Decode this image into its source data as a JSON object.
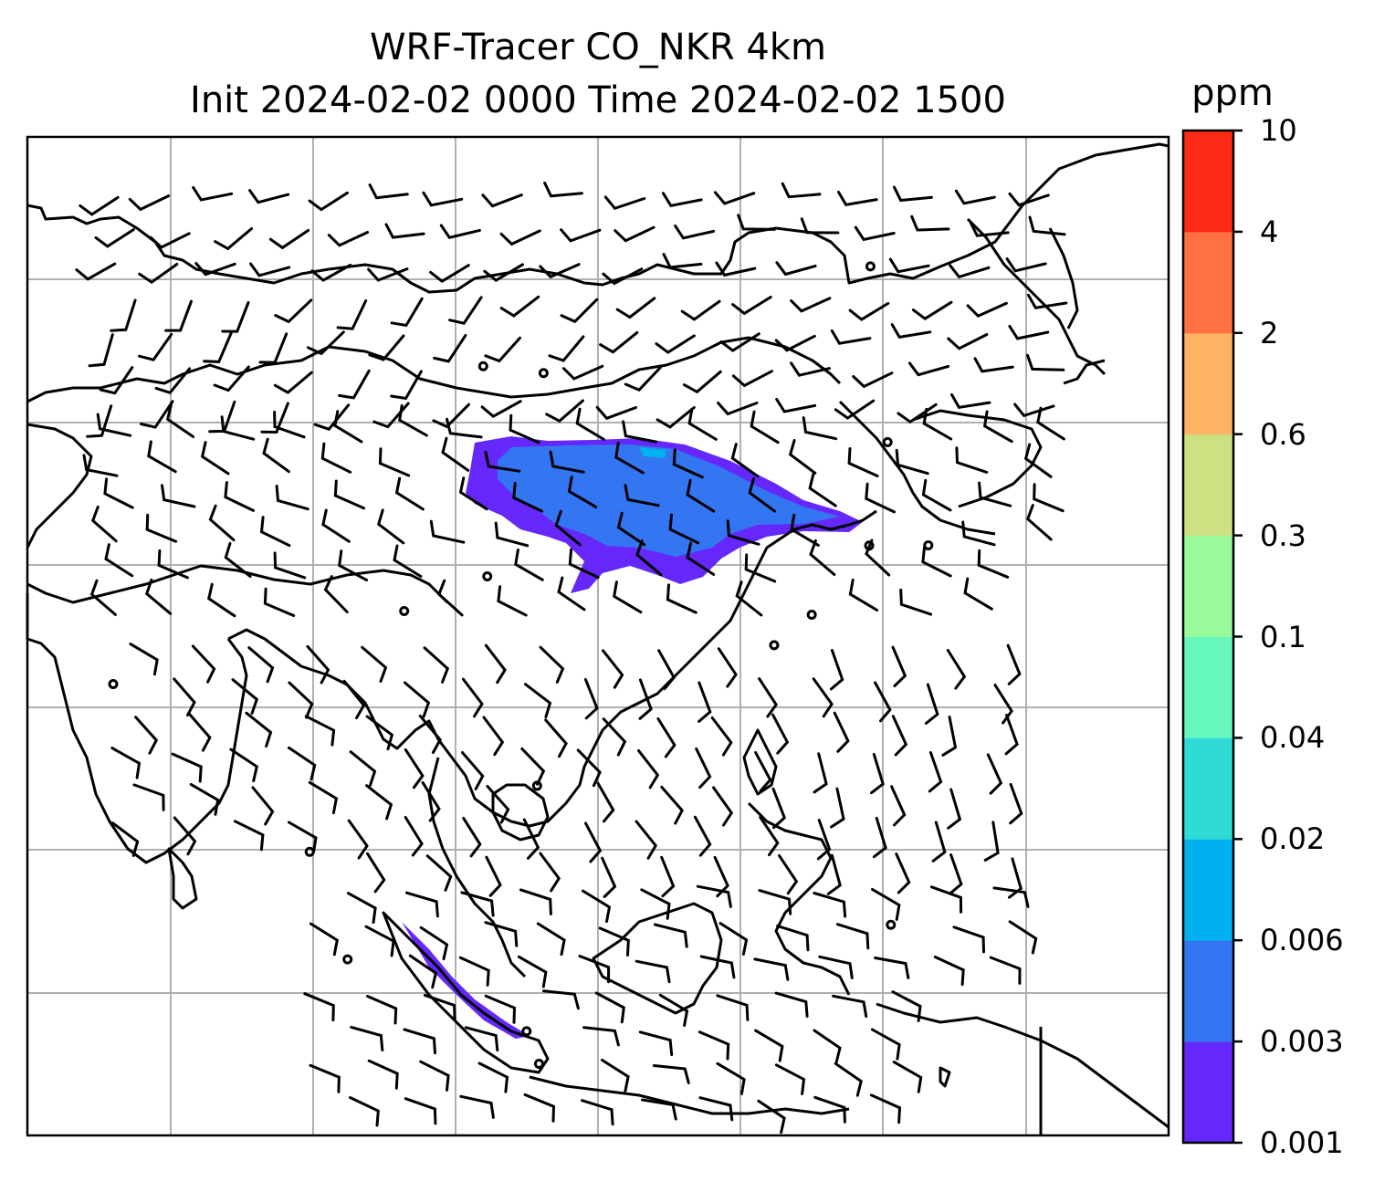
{
  "title": {
    "line1": "WRF-Tracer CO_NKR 4km",
    "line2": "Init 2024-02-02 0000 Time 2024-02-02 1500"
  },
  "colorbar": {
    "unit": "ppm",
    "levels": [
      "0.001",
      "0.003",
      "0.006",
      "0.02",
      "0.04",
      "0.1",
      "0.3",
      "0.6",
      "2",
      "4",
      "10"
    ],
    "colors": [
      "#6627fb",
      "#3475f2",
      "#00b0ef",
      "#2edbd6",
      "#66f7bf",
      "#98fa9a",
      "#cde183",
      "#fdb264",
      "#fd7240",
      "#fd2a15"
    ]
  },
  "map": {
    "gridlines": true,
    "projection_note_colors": {
      "coastline": "#000000",
      "grid": "#b0b0b0",
      "plume_low": "#6627fb",
      "plume_mid": "#3475f2",
      "plume_core": "#00b0ef"
    }
  }
}
